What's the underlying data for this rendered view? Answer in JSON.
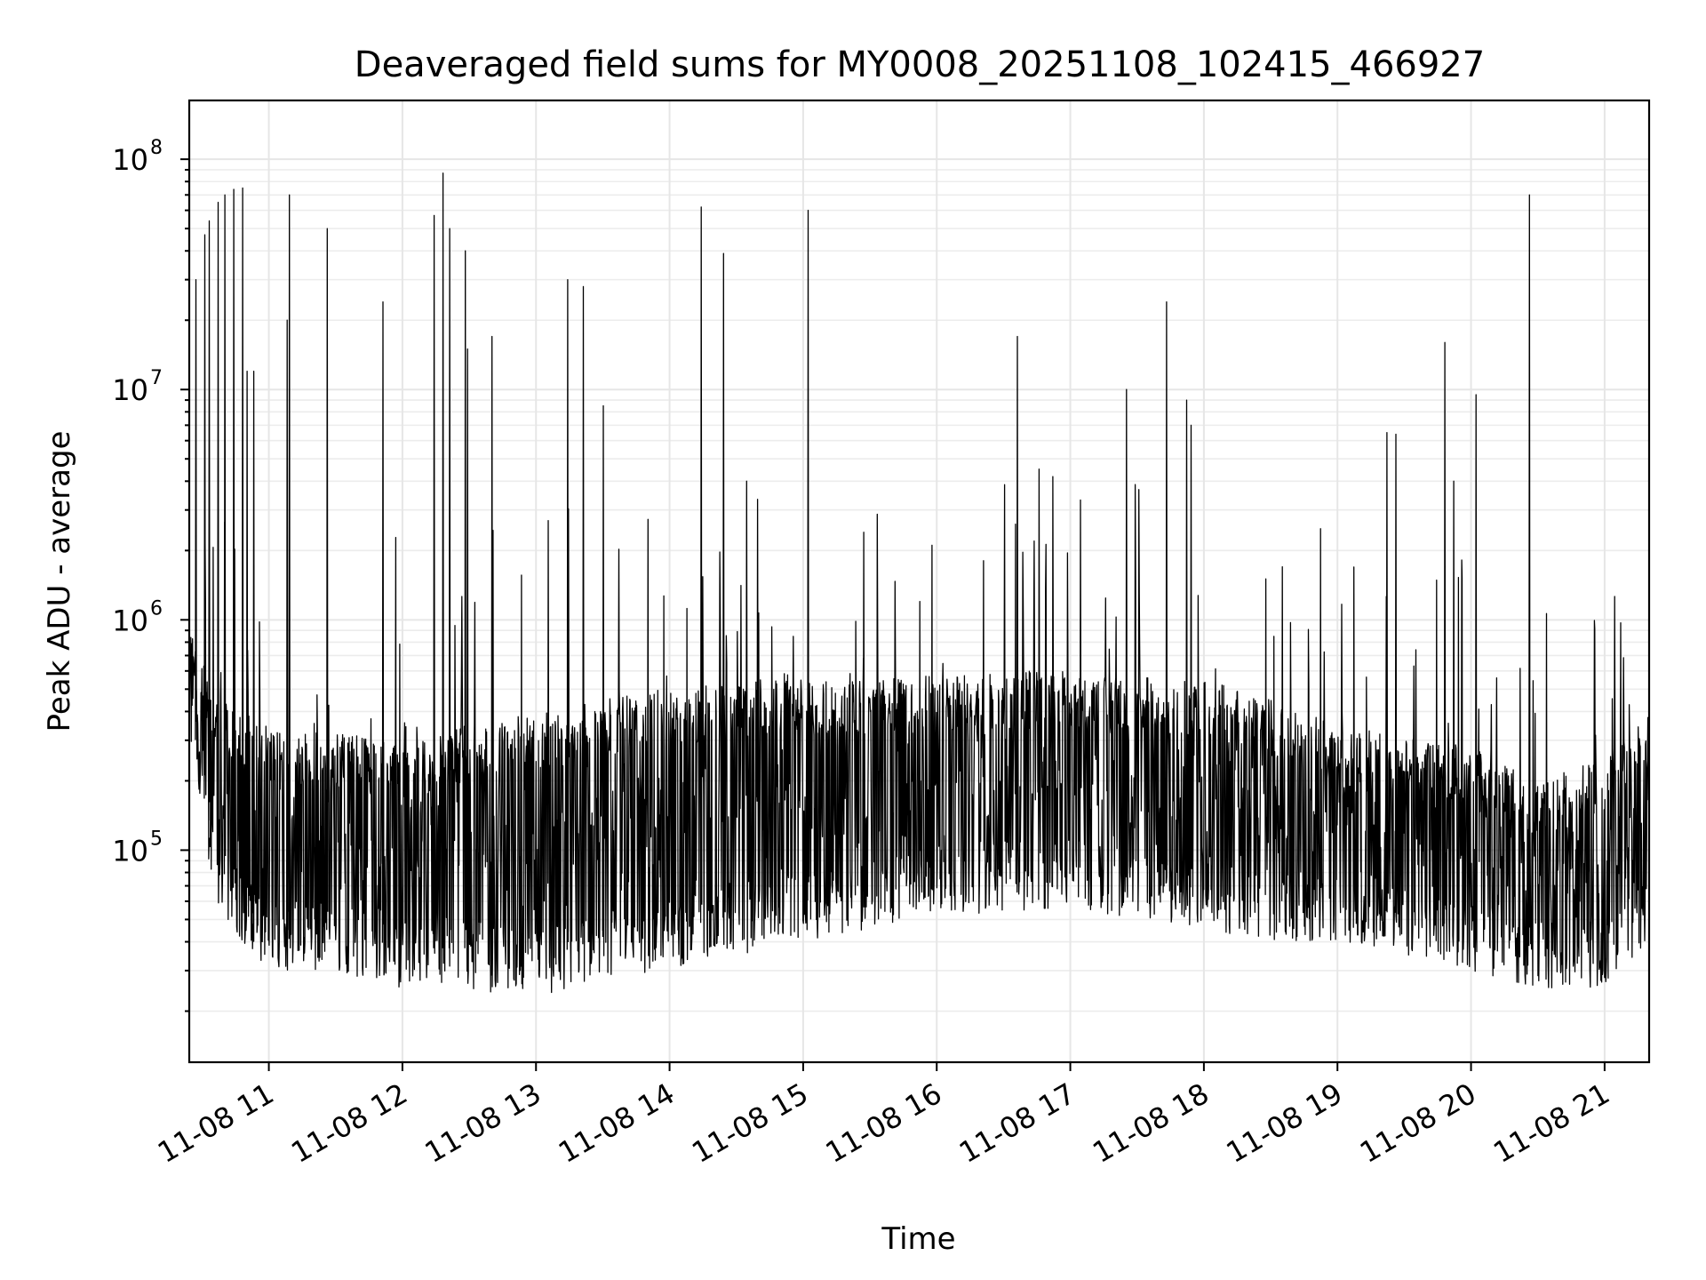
{
  "chart_data": {
    "type": "line",
    "title": "Deaveraged field sums for MY0008_20251108_102415_466927",
    "xlabel": "Time",
    "ylabel": "Peak ADU - average",
    "yscale": "log",
    "ylim": [
      12000,
      180000000
    ],
    "xlim": [
      "2025-11-08 10:24:15",
      "2025-11-08 21:20:00"
    ],
    "grid": true,
    "xticks": [
      "11-08 11",
      "11-08 12",
      "11-08 13",
      "11-08 14",
      "11-08 15",
      "11-08 16",
      "11-08 17",
      "11-08 18",
      "11-08 19",
      "11-08 20",
      "11-08 21"
    ],
    "xtick_times": [
      "2025-11-08 11:00",
      "2025-11-08 12:00",
      "2025-11-08 13:00",
      "2025-11-08 14:00",
      "2025-11-08 15:00",
      "2025-11-08 16:00",
      "2025-11-08 17:00",
      "2025-11-08 18:00",
      "2025-11-08 19:00",
      "2025-11-08 20:00",
      "2025-11-08 21:00"
    ],
    "yticks": [
      {
        "base": "10",
        "exp": "5",
        "value": 100000
      },
      {
        "base": "10",
        "exp": "6",
        "value": 1000000
      },
      {
        "base": "10",
        "exp": "7",
        "value": 10000000
      },
      {
        "base": "10",
        "exp": "8",
        "value": 100000000
      }
    ],
    "envelope": {
      "time": [
        "2025-11-08 10:24",
        "2025-11-08 10:36",
        "2025-11-08 10:48",
        "2025-11-08 11:00",
        "2025-11-08 11:30",
        "2025-11-08 12:00",
        "2025-11-08 12:30",
        "2025-11-08 13:00",
        "2025-11-08 13:30",
        "2025-11-08 14:00",
        "2025-11-08 14:30",
        "2025-11-08 15:00",
        "2025-11-08 15:30",
        "2025-11-08 16:00",
        "2025-11-08 16:30",
        "2025-11-08 17:00",
        "2025-11-08 17:30",
        "2025-11-08 18:00",
        "2025-11-08 18:30",
        "2025-11-08 19:00",
        "2025-11-08 19:30",
        "2025-11-08 20:00",
        "2025-11-08 20:30",
        "2025-11-08 21:00",
        "2025-11-08 21:20"
      ],
      "upper": [
        1000000,
        500000,
        400000,
        350000,
        320000,
        300000,
        350000,
        400000,
        450000,
        500000,
        550000,
        550000,
        550000,
        580000,
        600000,
        600000,
        580000,
        550000,
        450000,
        350000,
        320000,
        280000,
        200000,
        250000,
        400000
      ],
      "lower": [
        300000,
        60000,
        40000,
        30000,
        30000,
        25000,
        25000,
        22000,
        28000,
        30000,
        35000,
        40000,
        45000,
        50000,
        55000,
        55000,
        50000,
        45000,
        40000,
        40000,
        35000,
        30000,
        25000,
        25000,
        40000
      ]
    },
    "spikes": {
      "time": [
        "2025-11-08 10:27",
        "2025-11-08 10:31",
        "2025-11-08 10:33",
        "2025-11-08 10:37",
        "2025-11-08 10:40",
        "2025-11-08 10:44",
        "2025-11-08 10:48",
        "2025-11-08 10:50",
        "2025-11-08 10:53",
        "2025-11-08 11:08",
        "2025-11-08 11:09",
        "2025-11-08 11:26",
        "2025-11-08 11:51",
        "2025-11-08 12:14",
        "2025-11-08 12:18",
        "2025-11-08 12:21",
        "2025-11-08 12:28",
        "2025-11-08 12:29",
        "2025-11-08 12:40",
        "2025-11-08 13:14",
        "2025-11-08 13:21",
        "2025-11-08 13:30",
        "2025-11-08 14:14",
        "2025-11-08 14:24",
        "2025-11-08 15:02",
        "2025-11-08 15:27",
        "2025-11-08 16:36",
        "2025-11-08 17:25",
        "2025-11-08 17:43",
        "2025-11-08 17:52",
        "2025-11-08 17:54",
        "2025-11-08 18:35",
        "2025-11-08 19:22",
        "2025-11-08 19:26",
        "2025-11-08 19:48",
        "2025-11-08 19:52",
        "2025-11-08 20:02",
        "2025-11-08 20:26"
      ],
      "value": [
        30000000,
        47000000,
        54000000,
        65000000,
        70000000,
        74000000,
        75000000,
        12000000,
        12000000,
        20000000,
        70000000,
        50000000,
        24000000,
        57000000,
        87000000,
        50000000,
        40000000,
        15000000,
        17000000,
        30000000,
        28000000,
        8500000,
        62000000,
        39000000,
        60000000,
        2400000,
        17000000,
        10000000,
        24000000,
        9000000,
        7000000,
        1700000,
        6500000,
        6400000,
        16000000,
        4000000,
        9500000,
        70000000
      ]
    }
  }
}
